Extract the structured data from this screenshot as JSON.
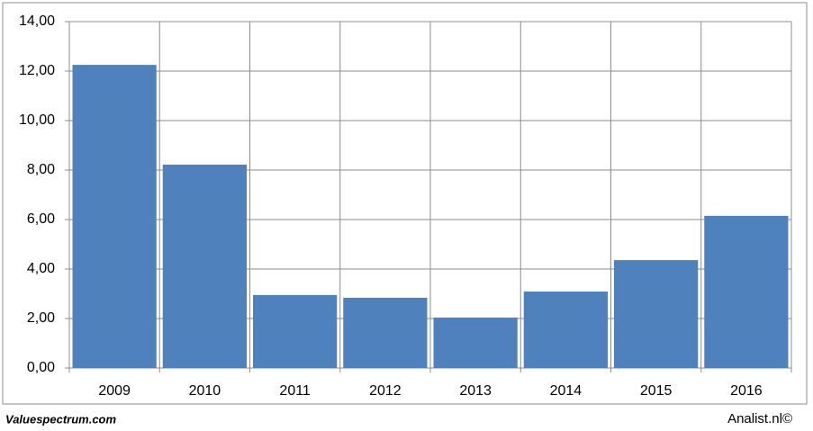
{
  "chart_data": {
    "type": "bar",
    "categories": [
      "2009",
      "2010",
      "2011",
      "2012",
      "2013",
      "2014",
      "2015",
      "2016"
    ],
    "values": [
      12.25,
      8.22,
      2.95,
      2.84,
      2.04,
      3.09,
      4.36,
      6.15
    ],
    "color": "#4f81bd",
    "ylim": [
      0,
      14
    ],
    "yticks": [
      {
        "value": 0,
        "label": "0,00"
      },
      {
        "value": 2,
        "label": "2,00"
      },
      {
        "value": 4,
        "label": "4,00"
      },
      {
        "value": 6,
        "label": "6,00"
      },
      {
        "value": 8,
        "label": "8,00"
      },
      {
        "value": 10,
        "label": "10,00"
      },
      {
        "value": 12,
        "label": "12,00"
      },
      {
        "value": 14,
        "label": "14,00"
      }
    ],
    "grid": true
  },
  "footer": {
    "left": "Valuespectrum.com",
    "right": "Analist.nl©"
  }
}
